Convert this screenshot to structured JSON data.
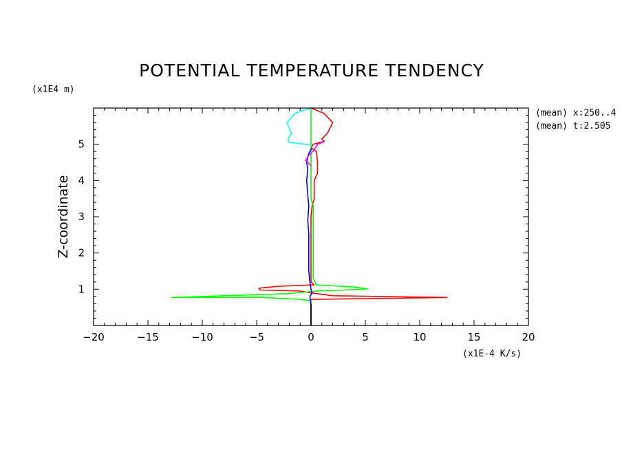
{
  "chart_data": {
    "type": "line",
    "title": "POTENTIAL TEMPERATURE TENDENCY",
    "ylabel": "Z-coordinate",
    "y_units": "(x1E4 m)",
    "x_units": "(x1E-4 K/s)",
    "xlim": [
      -20,
      20
    ],
    "ylim": [
      0,
      6
    ],
    "x_ticks": [
      "-20",
      "-15",
      "-10",
      "-5",
      "0",
      "5",
      "10",
      "15",
      "20"
    ],
    "y_ticks": [
      "1",
      "2",
      "3",
      "4",
      "5"
    ],
    "annotations": [
      "(mean) x:250..4",
      "(mean) t:2.505"
    ],
    "series": [
      {
        "color": "#ff0000",
        "points": [
          [
            0,
            6
          ],
          [
            1.2,
            5.85
          ],
          [
            2,
            5.6
          ],
          [
            1.5,
            5.3
          ],
          [
            1,
            5.15
          ],
          [
            1.2,
            5.08
          ],
          [
            0.2,
            5.0
          ],
          [
            0,
            4.9
          ],
          [
            0.5,
            4.8
          ],
          [
            0.6,
            4.5
          ],
          [
            0.6,
            4.2
          ],
          [
            0.3,
            4.0
          ],
          [
            0.3,
            3.5
          ],
          [
            0.1,
            3.3
          ],
          [
            0,
            3.0
          ],
          [
            0,
            2.0
          ],
          [
            0,
            1.2
          ],
          [
            0.3,
            1.12
          ],
          [
            -3,
            1.08
          ],
          [
            -4.8,
            1.03
          ],
          [
            -4.7,
            0.98
          ],
          [
            -1,
            0.95
          ],
          [
            0,
            0.9
          ],
          [
            2,
            0.82
          ],
          [
            12.5,
            0.77
          ],
          [
            5,
            0.74
          ],
          [
            0,
            0.72
          ],
          [
            0,
            0.5
          ],
          [
            0,
            0
          ]
        ]
      },
      {
        "color": "#00ff00",
        "points": [
          [
            0,
            6
          ],
          [
            0,
            5.0
          ],
          [
            0,
            4.0
          ],
          [
            0,
            3.5
          ],
          [
            0.2,
            3.3
          ],
          [
            0.2,
            2.0
          ],
          [
            0.2,
            1.3
          ],
          [
            0.5,
            1.12
          ],
          [
            4,
            1.06
          ],
          [
            5.2,
            1.01
          ],
          [
            4,
            0.99
          ],
          [
            0.5,
            0.95
          ],
          [
            -2,
            0.88
          ],
          [
            -12.8,
            0.77
          ],
          [
            -5,
            0.78
          ],
          [
            -1,
            0.72
          ],
          [
            0,
            0.68
          ],
          [
            0,
            0
          ]
        ]
      },
      {
        "color": "#00ffff",
        "points": [
          [
            0,
            6
          ],
          [
            -1.5,
            5.85
          ],
          [
            -2.2,
            5.6
          ],
          [
            -1.8,
            5.3
          ],
          [
            -2.1,
            5.15
          ],
          [
            -2.0,
            5.05
          ],
          [
            -0.5,
            5.0
          ],
          [
            0,
            5.0
          ]
        ]
      },
      {
        "color": "#0000ff",
        "points": [
          [
            0.1,
            4.9
          ],
          [
            -0.2,
            4.75
          ],
          [
            -0.4,
            4.5
          ],
          [
            -0.3,
            4.3
          ],
          [
            -0.4,
            4.0
          ],
          [
            -0.3,
            3.6
          ],
          [
            -0.2,
            3.3
          ],
          [
            -0.3,
            2.9
          ],
          [
            -0.2,
            2.5
          ],
          [
            -0.2,
            2.0
          ],
          [
            -0.2,
            1.5
          ],
          [
            -0.1,
            1.2
          ],
          [
            0,
            1.0
          ],
          [
            0.1,
            0.9
          ],
          [
            -0.1,
            0.8
          ],
          [
            0,
            0.5
          ],
          [
            0,
            0
          ]
        ]
      },
      {
        "color": "#ff00ff",
        "points": [
          [
            1.2,
            5.07
          ],
          [
            0.6,
            5.0
          ],
          [
            0.3,
            4.85
          ],
          [
            -0.3,
            4.65
          ],
          [
            -0.5,
            4.55
          ],
          [
            -0.2,
            4.48
          ],
          [
            0,
            4.4
          ]
        ]
      },
      {
        "color": "#000000",
        "points": [
          [
            0,
            0.6
          ],
          [
            0,
            0
          ]
        ]
      }
    ]
  }
}
